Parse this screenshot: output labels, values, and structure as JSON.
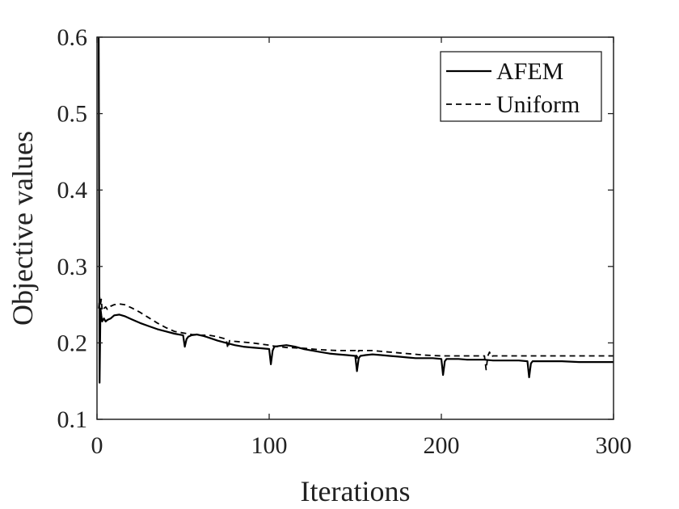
{
  "chart_data": {
    "type": "line",
    "xlabel": "Iterations",
    "ylabel": "Objective values",
    "xlim": [
      0,
      300
    ],
    "ylim": [
      0.1,
      0.6
    ],
    "xticks": [
      0,
      100,
      200,
      300
    ],
    "yticks": [
      0.1,
      0.2,
      0.3,
      0.4,
      0.5,
      0.6
    ],
    "xtick_labels": [
      "0",
      "100",
      "200",
      "300"
    ],
    "ytick_labels": [
      "0.1",
      "0.2",
      "0.3",
      "0.4",
      "0.5",
      "0.6"
    ],
    "grid": false,
    "legend": {
      "placement": "top-right"
    },
    "colors": {
      "line": "#000000",
      "axis": "#222222"
    },
    "series": [
      {
        "name": "AFEM",
        "style": "solid",
        "x": [
          1,
          1.5,
          2,
          2.5,
          3,
          4,
          5,
          6,
          8,
          10,
          13,
          16,
          20,
          25,
          30,
          35,
          40,
          45,
          50,
          51,
          52,
          53,
          55,
          58,
          62,
          66,
          70,
          75,
          80,
          85,
          90,
          95,
          100,
          101,
          102,
          103,
          106,
          110,
          115,
          120,
          125,
          130,
          135,
          140,
          145,
          150,
          151,
          152,
          153,
          156,
          160,
          165,
          170,
          175,
          180,
          185,
          190,
          195,
          200,
          201,
          202,
          203,
          206,
          210,
          215,
          220,
          225,
          230,
          235,
          240,
          245,
          250,
          251,
          252,
          253,
          256,
          260,
          270,
          280,
          290,
          300
        ],
        "y": [
          0.6,
          0.148,
          0.245,
          0.236,
          0.228,
          0.232,
          0.228,
          0.23,
          0.232,
          0.236,
          0.237,
          0.235,
          0.231,
          0.226,
          0.222,
          0.218,
          0.215,
          0.212,
          0.21,
          0.195,
          0.205,
          0.208,
          0.21,
          0.211,
          0.209,
          0.206,
          0.203,
          0.2,
          0.197,
          0.195,
          0.194,
          0.193,
          0.192,
          0.172,
          0.19,
          0.195,
          0.196,
          0.197,
          0.195,
          0.192,
          0.19,
          0.188,
          0.186,
          0.185,
          0.184,
          0.183,
          0.163,
          0.18,
          0.183,
          0.184,
          0.185,
          0.184,
          0.183,
          0.182,
          0.181,
          0.18,
          0.18,
          0.18,
          0.179,
          0.158,
          0.176,
          0.179,
          0.179,
          0.179,
          0.178,
          0.178,
          0.178,
          0.177,
          0.177,
          0.177,
          0.177,
          0.176,
          0.155,
          0.173,
          0.176,
          0.176,
          0.176,
          0.176,
          0.175,
          0.175,
          0.175
        ]
      },
      {
        "name": "Uniform",
        "style": "dashed",
        "x": [
          1,
          1.5,
          2,
          2.5,
          3,
          4,
          5,
          6,
          8,
          10,
          13,
          16,
          20,
          25,
          30,
          35,
          40,
          45,
          50,
          55,
          60,
          65,
          70,
          75,
          76,
          77,
          80,
          90,
          100,
          101,
          102,
          110,
          120,
          130,
          140,
          150,
          151,
          152,
          160,
          170,
          180,
          190,
          200,
          210,
          220,
          225,
          226,
          227,
          228,
          229,
          230,
          240,
          250,
          260,
          270,
          280,
          290,
          300
        ],
        "y": [
          0.245,
          0.26,
          0.25,
          0.257,
          0.242,
          0.245,
          0.247,
          0.244,
          0.248,
          0.25,
          0.251,
          0.25,
          0.246,
          0.24,
          0.233,
          0.226,
          0.22,
          0.215,
          0.213,
          0.211,
          0.21,
          0.21,
          0.208,
          0.205,
          0.193,
          0.203,
          0.202,
          0.2,
          0.197,
          0.196,
          0.196,
          0.194,
          0.193,
          0.191,
          0.19,
          0.19,
          0.18,
          0.19,
          0.19,
          0.188,
          0.186,
          0.184,
          0.183,
          0.183,
          0.183,
          0.183,
          0.165,
          0.183,
          0.188,
          0.182,
          0.183,
          0.183,
          0.183,
          0.183,
          0.183,
          0.183,
          0.183,
          0.183
        ]
      }
    ]
  }
}
